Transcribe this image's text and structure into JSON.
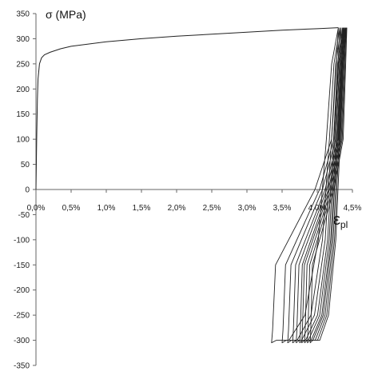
{
  "chart_data": {
    "type": "line",
    "title": "",
    "ylabel": "σ (MPa)",
    "xlabel_main": "ε",
    "xlabel_sub": "pl",
    "xlim": [
      0,
      4.5
    ],
    "ylim": [
      -350,
      350
    ],
    "grid": false,
    "x_ticks": [
      {
        "value": 0.0,
        "label": "0,0%"
      },
      {
        "value": 0.5,
        "label": "0,5%"
      },
      {
        "value": 1.0,
        "label": "1,0%"
      },
      {
        "value": 1.5,
        "label": "1,5%"
      },
      {
        "value": 2.0,
        "label": "2,0%"
      },
      {
        "value": 2.5,
        "label": "2,5%"
      },
      {
        "value": 3.0,
        "label": "3,0%"
      },
      {
        "value": 3.5,
        "label": "3,5%"
      },
      {
        "value": 4.0,
        "label": "4,0%"
      },
      {
        "value": 4.5,
        "label": "4,5%"
      }
    ],
    "y_ticks": [
      {
        "value": 350,
        "label": "350"
      },
      {
        "value": 300,
        "label": "300"
      },
      {
        "value": 250,
        "label": "250"
      },
      {
        "value": 200,
        "label": "200"
      },
      {
        "value": 150,
        "label": "150"
      },
      {
        "value": 100,
        "label": "100"
      },
      {
        "value": 50,
        "label": "50"
      },
      {
        "value": 0,
        "label": "0"
      },
      {
        "value": -50,
        "label": "-50"
      },
      {
        "value": -100,
        "label": "-100"
      },
      {
        "value": -150,
        "label": "-150"
      },
      {
        "value": -200,
        "label": "-200"
      },
      {
        "value": -250,
        "label": "-250"
      },
      {
        "value": -300,
        "label": "-300"
      },
      {
        "value": -350,
        "label": "-350"
      }
    ],
    "loading_curve": {
      "x": [
        0.0,
        0.01,
        0.02,
        0.03,
        0.05,
        0.08,
        0.12,
        0.2,
        0.35,
        0.5,
        1.0,
        1.5,
        2.0,
        2.5,
        3.0,
        3.5,
        4.0,
        4.3
      ],
      "y": [
        0,
        100,
        180,
        220,
        250,
        262,
        268,
        273,
        280,
        285,
        294,
        300,
        305,
        309,
        313,
        317,
        320,
        322
      ]
    },
    "cycles": [
      {
        "x_tension": 4.3,
        "x_compression": 3.35
      },
      {
        "x_tension": 4.32,
        "x_compression": 3.5
      },
      {
        "x_tension": 4.34,
        "x_compression": 3.58
      },
      {
        "x_tension": 4.36,
        "x_compression": 3.65
      },
      {
        "x_tension": 4.37,
        "x_compression": 3.7
      },
      {
        "x_tension": 4.38,
        "x_compression": 3.75
      },
      {
        "x_tension": 4.39,
        "x_compression": 3.78
      },
      {
        "x_tension": 4.4,
        "x_compression": 3.82
      },
      {
        "x_tension": 4.41,
        "x_compression": 3.86
      },
      {
        "x_tension": 4.42,
        "x_compression": 3.9
      }
    ],
    "peak_tension_stress": 322,
    "peak_compression_stress": -305
  }
}
